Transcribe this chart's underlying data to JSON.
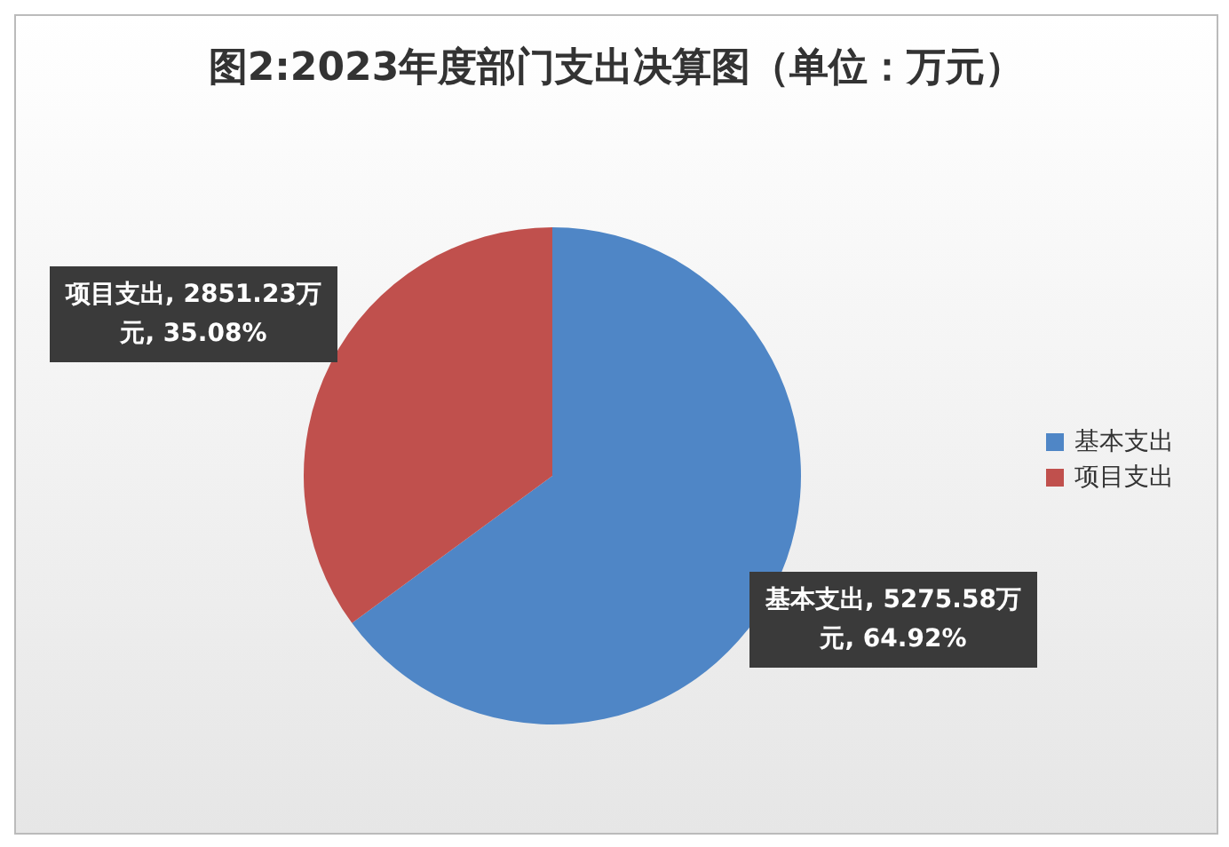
{
  "chart_data": {
    "type": "pie",
    "title": "图2:2023年度部门支出决算图（单位：万元）",
    "categories": [
      "基本支出",
      "项目支出"
    ],
    "values": [
      5275.58,
      2851.23
    ],
    "colors": [
      "#4f86c6",
      "#c0504d"
    ],
    "value_labels": [
      "基本支出, 5275.58万元, 64.92%",
      "项目支出, 2851.23万元, 35.08%"
    ],
    "legend": "right"
  }
}
